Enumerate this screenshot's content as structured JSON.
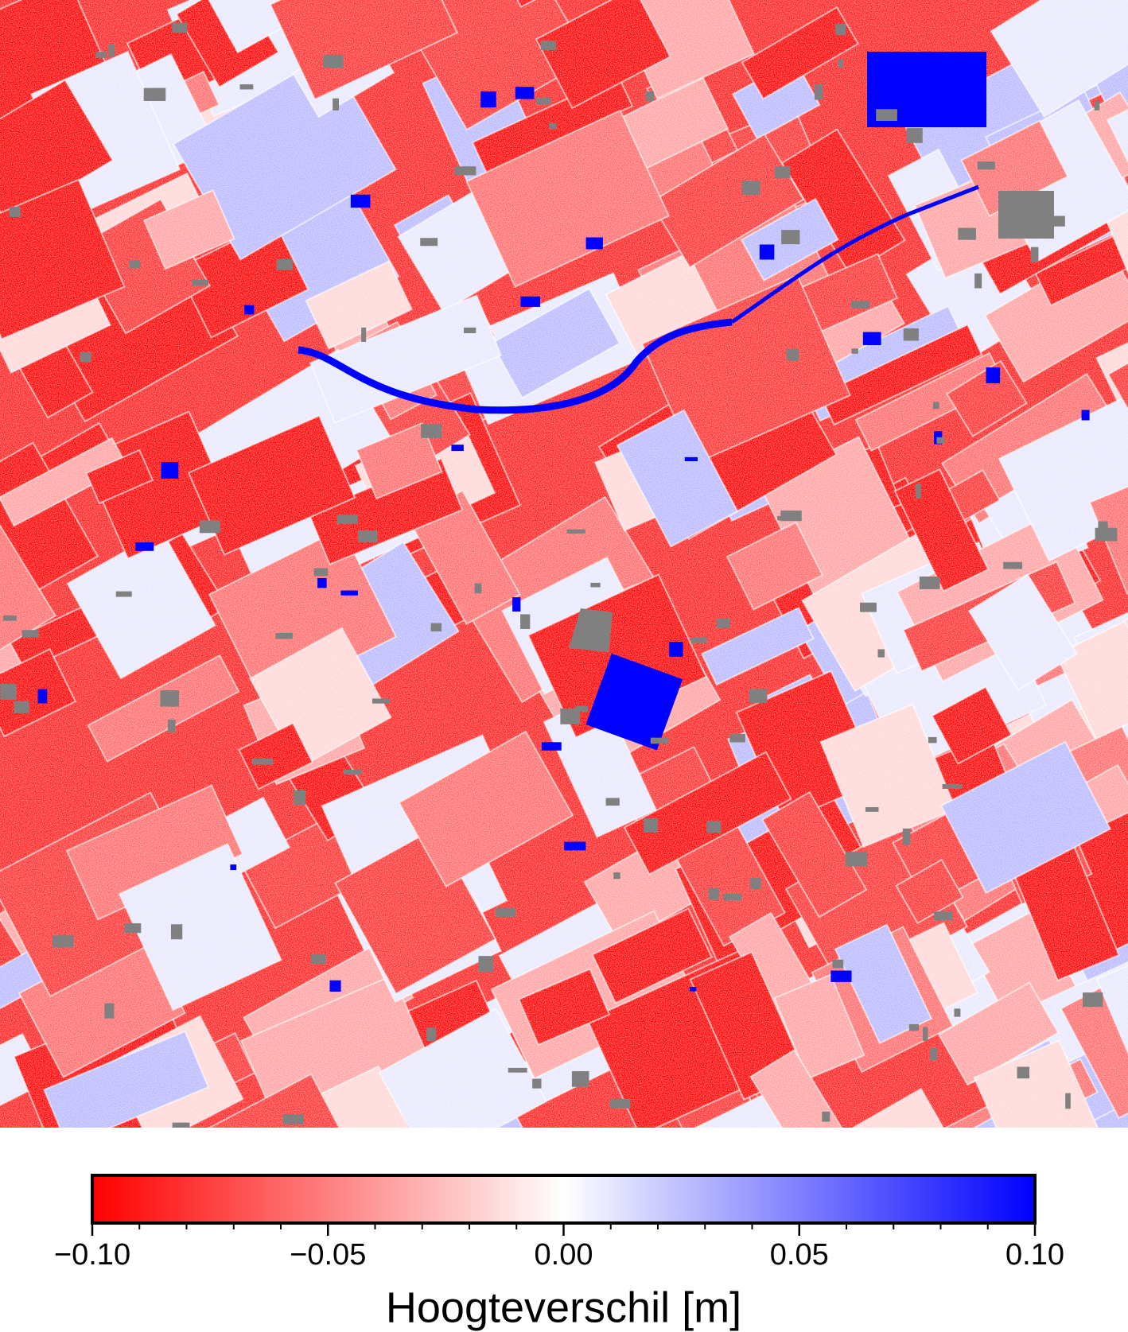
{
  "map": {
    "type": "raster",
    "colorbar": {
      "label": "Hoogteverschil [m]",
      "lim": [
        -0.1,
        0.1
      ],
      "ticks": [
        {
          "value": -0.1,
          "label": "−0.10"
        },
        {
          "value": -0.05,
          "label": "−0.05"
        },
        {
          "value": 0,
          "label": "0.00"
        },
        {
          "value": 0.05,
          "label": "0.05"
        },
        {
          "value": 0.1,
          "label": "0.10"
        }
      ],
      "minor_ticks": [
        -0.09,
        -0.08,
        -0.07,
        -0.06,
        -0.04,
        -0.03,
        -0.02,
        -0.01,
        0.01,
        0.02,
        0.03,
        0.04,
        0.06,
        0.07,
        0.08,
        0.09
      ],
      "colors": [
        "#ff0000",
        "#ffffff",
        "#0000ff"
      ]
    }
  }
}
